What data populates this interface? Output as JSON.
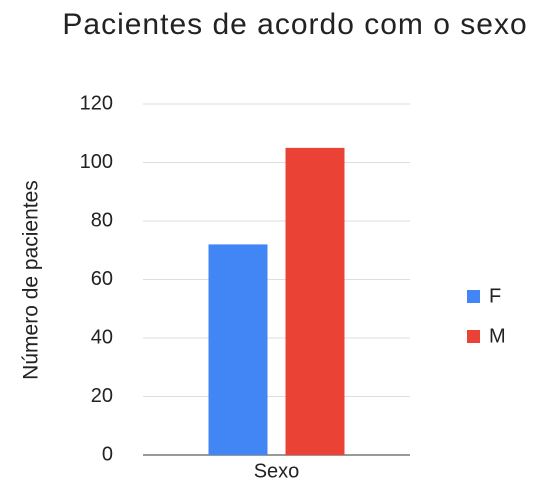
{
  "chart_data": {
    "type": "bar",
    "title": "Pacientes de acordo com o sexo",
    "y_label": "Número de pacientes",
    "categories": [
      "Sexo"
    ],
    "series": [
      {
        "name": "F",
        "color": "#4285f4",
        "values": [
          72
        ]
      },
      {
        "name": "M",
        "color": "#ea4335",
        "values": [
          105
        ]
      }
    ],
    "ylim": [
      0,
      120
    ],
    "yticks": [
      0,
      20,
      40,
      60,
      80,
      100,
      120
    ],
    "grid": true,
    "legend": "right"
  }
}
